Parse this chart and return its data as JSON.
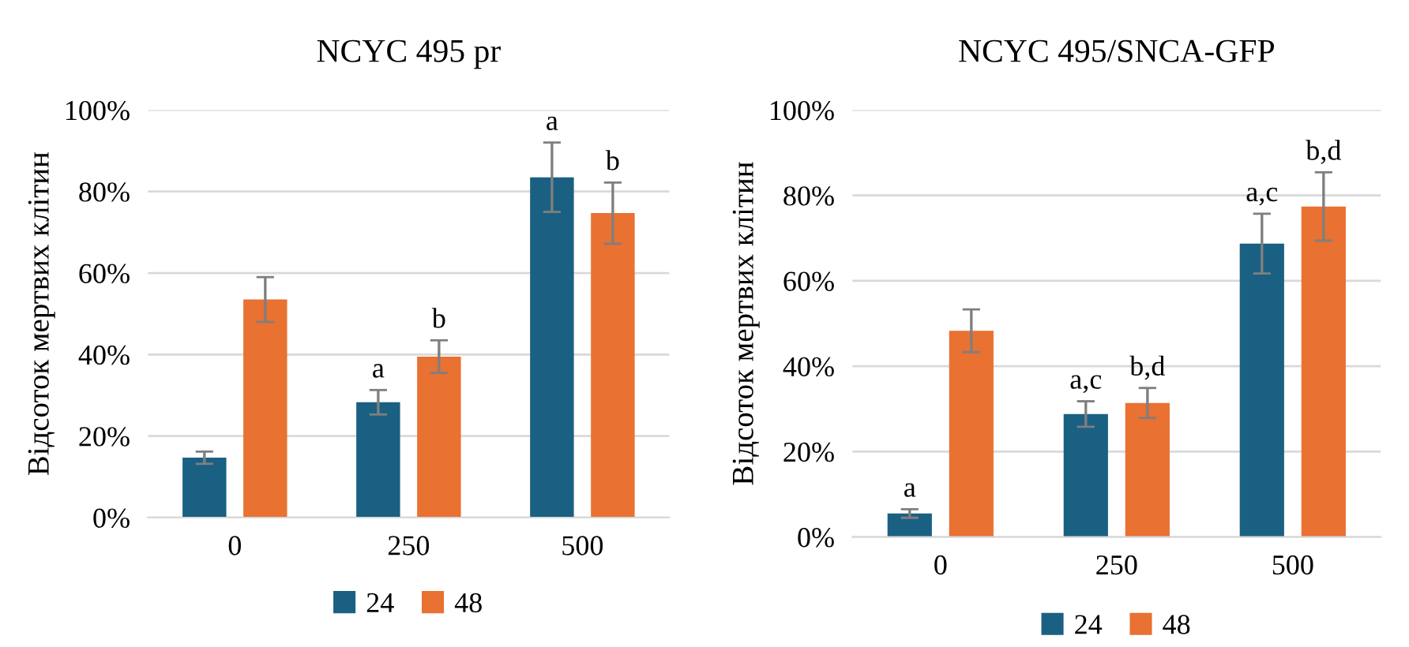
{
  "chart_data": [
    {
      "type": "bar",
      "title": "NCYC 495 pr",
      "ylabel": "Відсоток мертвих клітин",
      "categories": [
        "0",
        "250",
        "500"
      ],
      "series": [
        {
          "name": "24",
          "color": "#1a6082",
          "values": [
            14.7,
            28.3,
            83.5
          ],
          "errors": [
            1.5,
            3,
            8.5
          ],
          "value_labels": [
            null,
            "a",
            "a"
          ]
        },
        {
          "name": "48",
          "color": "#e97132",
          "values": [
            53.5,
            39.5,
            74.7
          ],
          "errors": [
            5.5,
            4,
            7.5
          ],
          "value_labels": [
            null,
            "b",
            "b"
          ]
        }
      ],
      "ylim": [
        0,
        100
      ],
      "yticks": [
        {
          "value": 0,
          "label": "0%"
        },
        {
          "value": 20,
          "label": "20%"
        },
        {
          "value": 40,
          "label": "40%"
        },
        {
          "value": 60,
          "label": "60%"
        },
        {
          "value": 80,
          "label": "80%"
        },
        {
          "value": 100,
          "label": "100%"
        }
      ],
      "grid": "y",
      "legend": "bottom"
    },
    {
      "type": "bar",
      "title": "NCYC 495/SNCA-GFP",
      "ylabel": "Відсоток мертвих клітин",
      "categories": [
        "0",
        "250",
        "500"
      ],
      "series": [
        {
          "name": "24",
          "color": "#1a6082",
          "values": [
            5.5,
            28.8,
            68.7
          ],
          "errors": [
            1,
            3,
            7
          ],
          "value_labels": [
            "a",
            "a,c",
            "a,c"
          ]
        },
        {
          "name": "48",
          "color": "#e97132",
          "values": [
            48.3,
            31.4,
            77.4
          ],
          "errors": [
            5,
            3.5,
            8
          ],
          "value_labels": [
            null,
            "b,d",
            "b,d"
          ]
        }
      ],
      "ylim": [
        0,
        100
      ],
      "yticks": [
        {
          "value": 0,
          "label": "0%"
        },
        {
          "value": 20,
          "label": "20%"
        },
        {
          "value": 40,
          "label": "40%"
        },
        {
          "value": 60,
          "label": "60%"
        },
        {
          "value": 80,
          "label": "80%"
        },
        {
          "value": 100,
          "label": "100%"
        }
      ],
      "grid": "y",
      "legend": "bottom"
    }
  ]
}
